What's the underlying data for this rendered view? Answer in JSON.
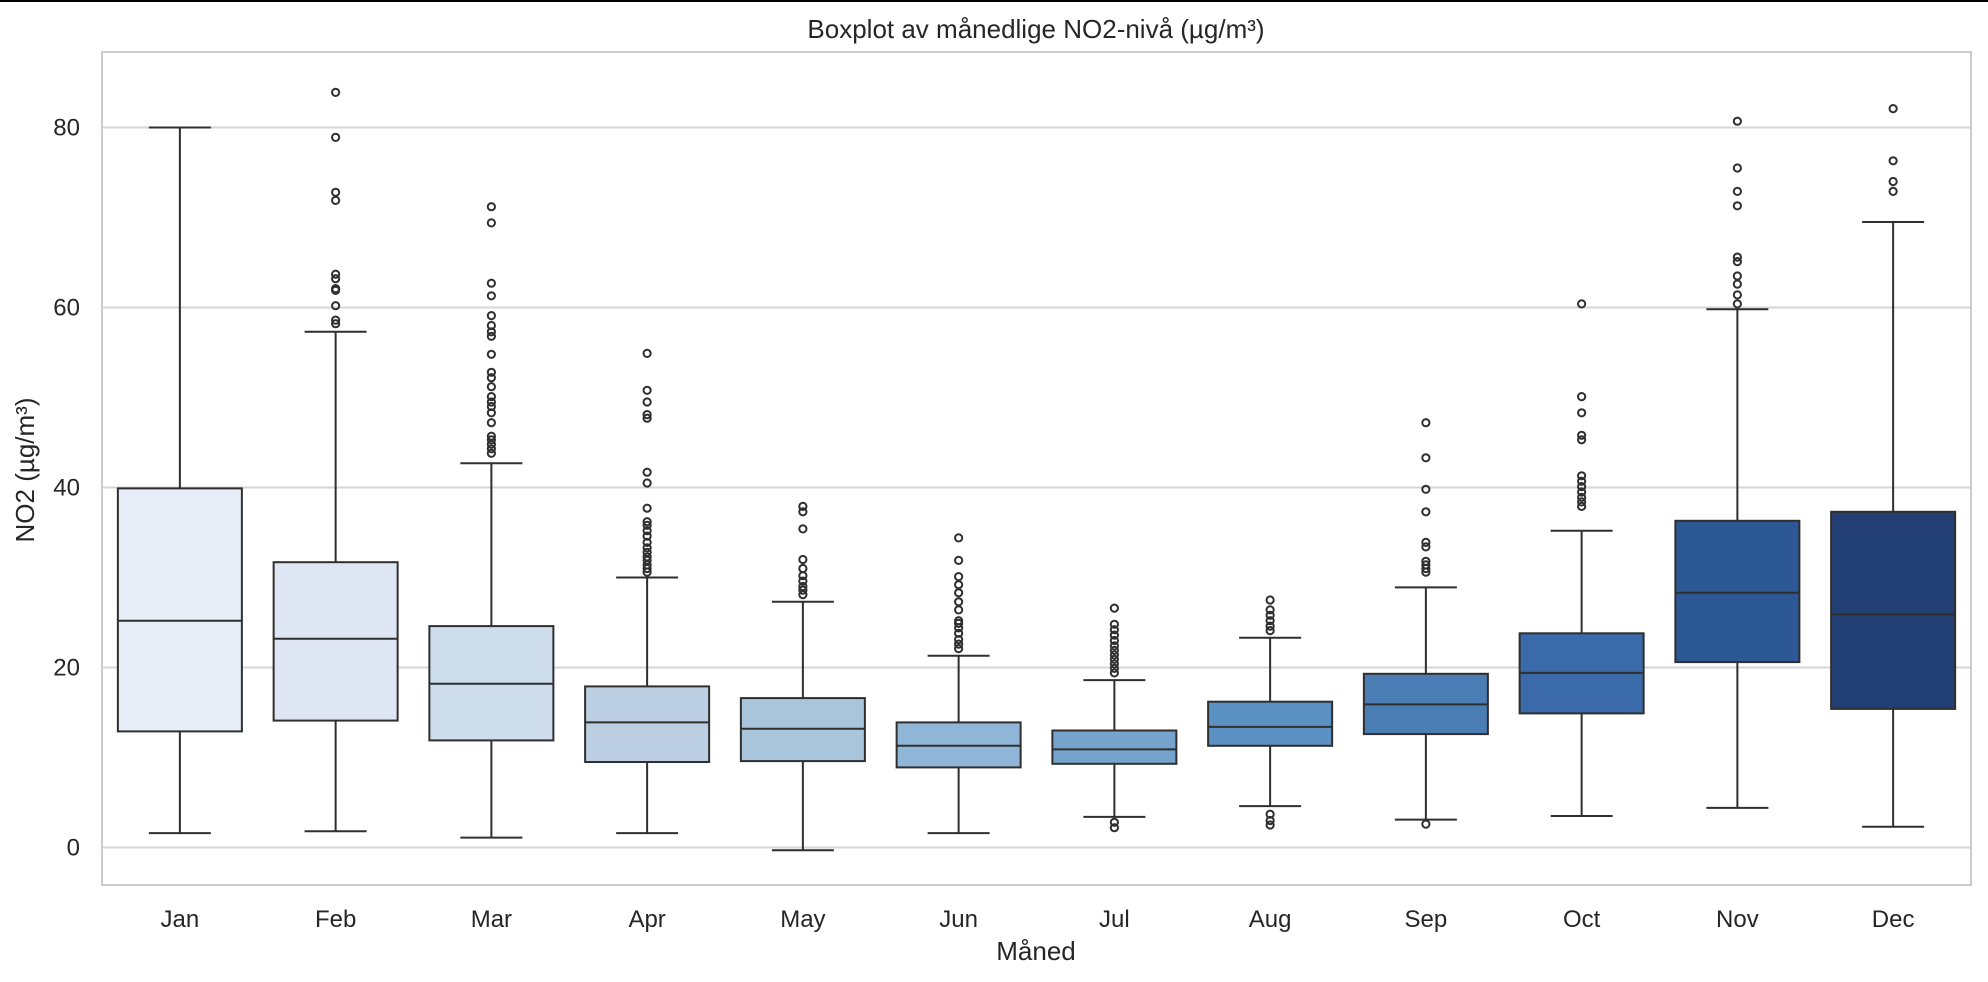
{
  "chart_data": {
    "type": "box",
    "title": "Boxplot av månedlige NO2-nivå (µg/m³)",
    "xlabel": "Måned",
    "ylabel": "NO2 (µg/m³)",
    "ylim": [
      -4,
      89
    ],
    "yticks": [
      0,
      20,
      40,
      60,
      80
    ],
    "grid": true,
    "categories": [
      "Jan",
      "Feb",
      "Mar",
      "Apr",
      "May",
      "Jun",
      "Jul",
      "Aug",
      "Sep",
      "Oct",
      "Nov",
      "Dec"
    ],
    "boxes": [
      {
        "min": 1.6,
        "q1": 12.9,
        "median": 25.2,
        "q3": 39.9,
        "max": 80.0,
        "outliers": []
      },
      {
        "min": 1.8,
        "q1": 14.1,
        "median": 23.2,
        "q3": 31.7,
        "max": 57.3,
        "outliers": [
          58.2,
          58.6,
          60.2,
          61.9,
          62.1,
          63.2,
          63.7,
          71.9,
          72.8,
          78.9,
          83.9
        ]
      },
      {
        "min": 1.1,
        "q1": 11.9,
        "median": 18.2,
        "q3": 24.6,
        "max": 42.7,
        "outliers": [
          43.8,
          44.3,
          44.8,
          45.3,
          45.7,
          47.2,
          48.3,
          49.0,
          49.5,
          50.1,
          51.2,
          52.2,
          52.8,
          54.8,
          56.8,
          57.3,
          58.0,
          59.1,
          61.3,
          62.7,
          69.4,
          71.2
        ]
      },
      {
        "min": 1.6,
        "q1": 9.5,
        "median": 13.9,
        "q3": 17.9,
        "max": 30.0,
        "outliers": [
          30.6,
          31.0,
          31.4,
          31.9,
          32.3,
          32.8,
          33.3,
          33.9,
          34.6,
          35.2,
          35.8,
          36.2,
          37.7,
          40.5,
          41.7,
          47.7,
          48.1,
          49.5,
          50.8,
          54.9
        ]
      },
      {
        "min": -0.3,
        "q1": 9.6,
        "median": 13.2,
        "q3": 16.6,
        "max": 27.3,
        "outliers": [
          28.1,
          28.6,
          29.0,
          29.6,
          30.2,
          31.0,
          32.0,
          35.4,
          37.3,
          37.9
        ]
      },
      {
        "min": 1.6,
        "q1": 8.9,
        "median": 11.3,
        "q3": 13.9,
        "max": 21.3,
        "outliers": [
          22.1,
          22.6,
          23.1,
          23.8,
          24.4,
          24.9,
          25.2,
          26.4,
          27.3,
          28.3,
          29.2,
          30.1,
          31.9,
          34.4
        ]
      },
      {
        "min": 3.4,
        "q1": 9.3,
        "median": 10.9,
        "q3": 13.0,
        "max": 18.6,
        "outliers": [
          2.2,
          2.8,
          19.4,
          19.9,
          20.4,
          20.9,
          21.4,
          21.9,
          22.4,
          23.0,
          23.6,
          24.2,
          24.8,
          26.6
        ]
      },
      {
        "min": 4.6,
        "q1": 11.3,
        "median": 13.4,
        "q3": 16.2,
        "max": 23.3,
        "outliers": [
          2.5,
          3.0,
          3.7,
          24.1,
          24.6,
          25.2,
          25.8,
          26.4,
          27.5
        ]
      },
      {
        "min": 3.1,
        "q1": 12.6,
        "median": 15.9,
        "q3": 19.3,
        "max": 28.9,
        "outliers": [
          2.6,
          30.6,
          31.0,
          31.4,
          31.8,
          33.4,
          33.9,
          37.3,
          39.8,
          43.3,
          47.2
        ]
      },
      {
        "min": 3.5,
        "q1": 14.9,
        "median": 19.4,
        "q3": 23.8,
        "max": 35.2,
        "outliers": [
          37.9,
          38.4,
          38.9,
          39.5,
          40.1,
          40.7,
          41.3,
          45.3,
          45.8,
          48.3,
          50.1,
          60.4
        ]
      },
      {
        "min": 4.4,
        "q1": 20.6,
        "median": 28.3,
        "q3": 36.3,
        "max": 59.8,
        "outliers": [
          60.4,
          61.4,
          62.6,
          63.5,
          65.1,
          65.6,
          71.3,
          72.9,
          75.5,
          80.7
        ]
      },
      {
        "min": 2.3,
        "q1": 15.4,
        "median": 25.9,
        "q3": 37.3,
        "max": 69.5,
        "outliers": [
          72.9,
          74.0,
          76.3,
          82.1
        ]
      }
    ],
    "colors": [
      "#e8eef8",
      "#dde6f2",
      "#cdddec",
      "#bccfe2",
      "#a8c5dc",
      "#8fb6d6",
      "#75a3cc",
      "#5b90c2",
      "#4a7db3",
      "#3a6aa9",
      "#2d5896",
      "#223f74"
    ]
  }
}
